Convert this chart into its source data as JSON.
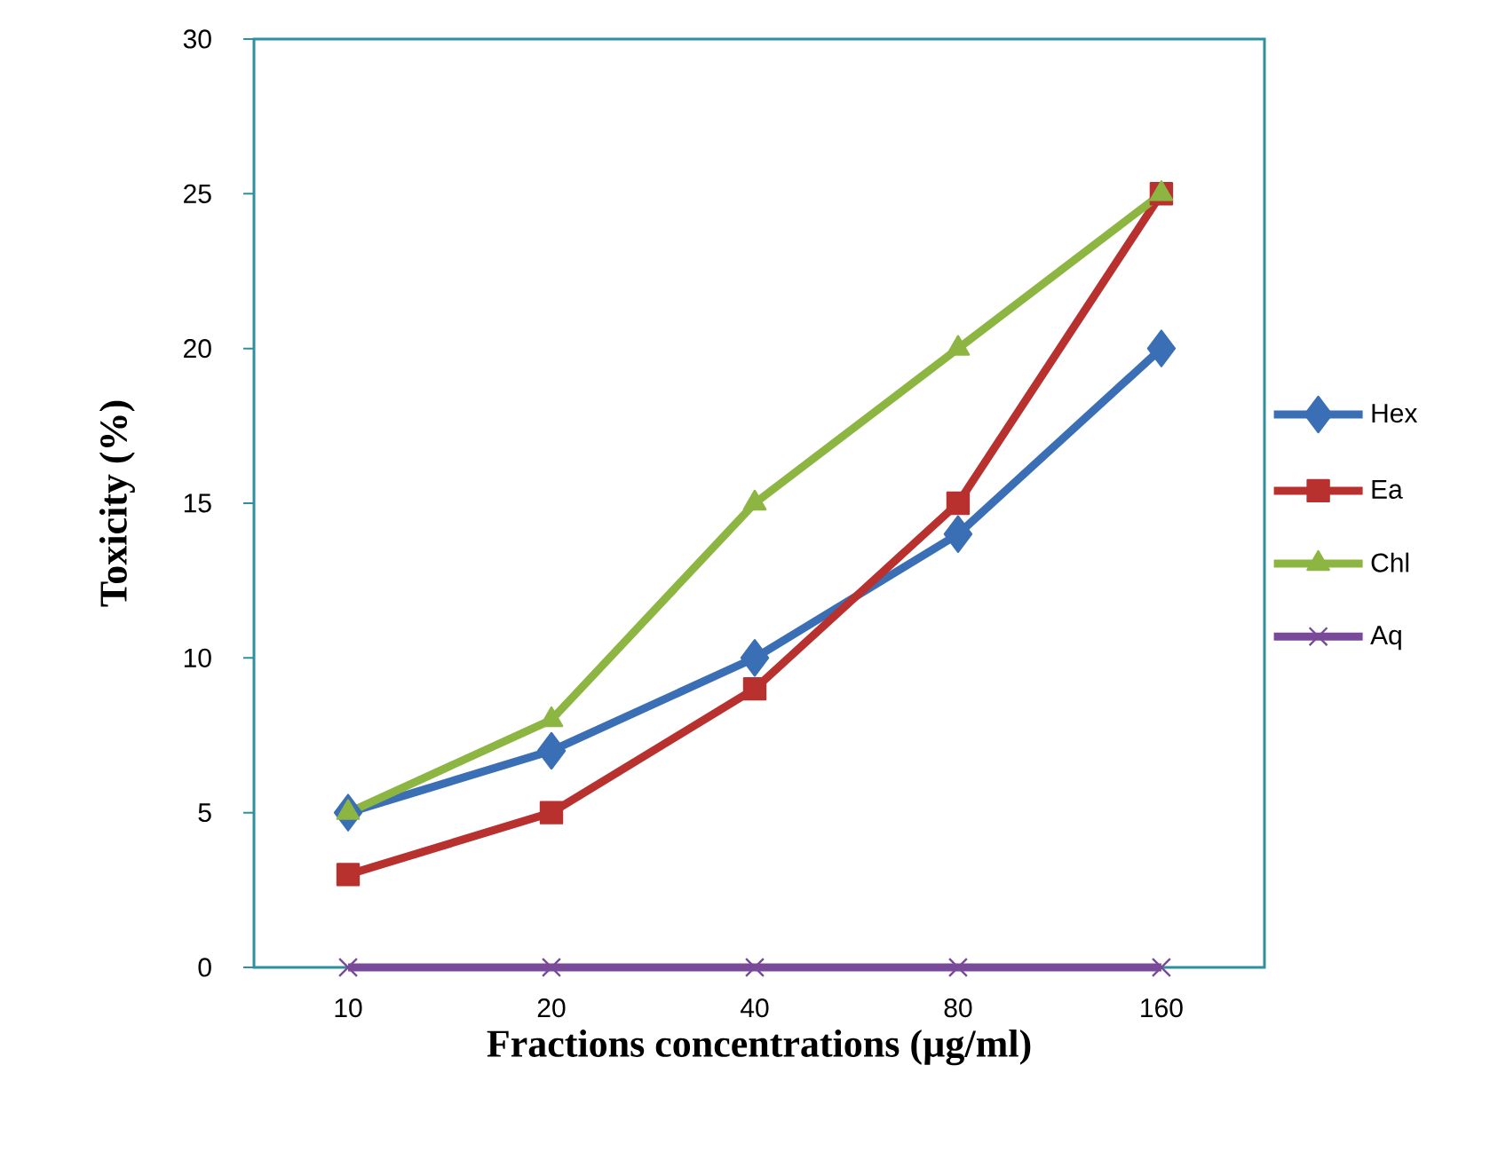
{
  "chart_data": {
    "type": "line",
    "xlabel": "Fractions concentrations (µg/ml)",
    "ylabel": "Toxicity (%)",
    "categories": [
      "10",
      "20",
      "40",
      "80",
      "160"
    ],
    "series": [
      {
        "name": "Hex",
        "color": "#3a6fb5",
        "marker": "diamond",
        "values": [
          5,
          7,
          10,
          14,
          20
        ]
      },
      {
        "name": "Ea",
        "color": "#b8312f",
        "marker": "square",
        "values": [
          3,
          5,
          9,
          15,
          25
        ]
      },
      {
        "name": "Chl",
        "color": "#8db542",
        "marker": "triangle",
        "values": [
          5,
          8,
          15,
          20,
          25
        ]
      },
      {
        "name": "Aq",
        "color": "#7a4a9a",
        "marker": "cross",
        "values": [
          0,
          0,
          0,
          0,
          0
        ]
      }
    ],
    "ylim": [
      0,
      30
    ],
    "yticks": [
      0,
      5,
      10,
      15,
      20,
      25,
      30
    ],
    "grid": false,
    "legend": "right",
    "line_style": "solid"
  }
}
